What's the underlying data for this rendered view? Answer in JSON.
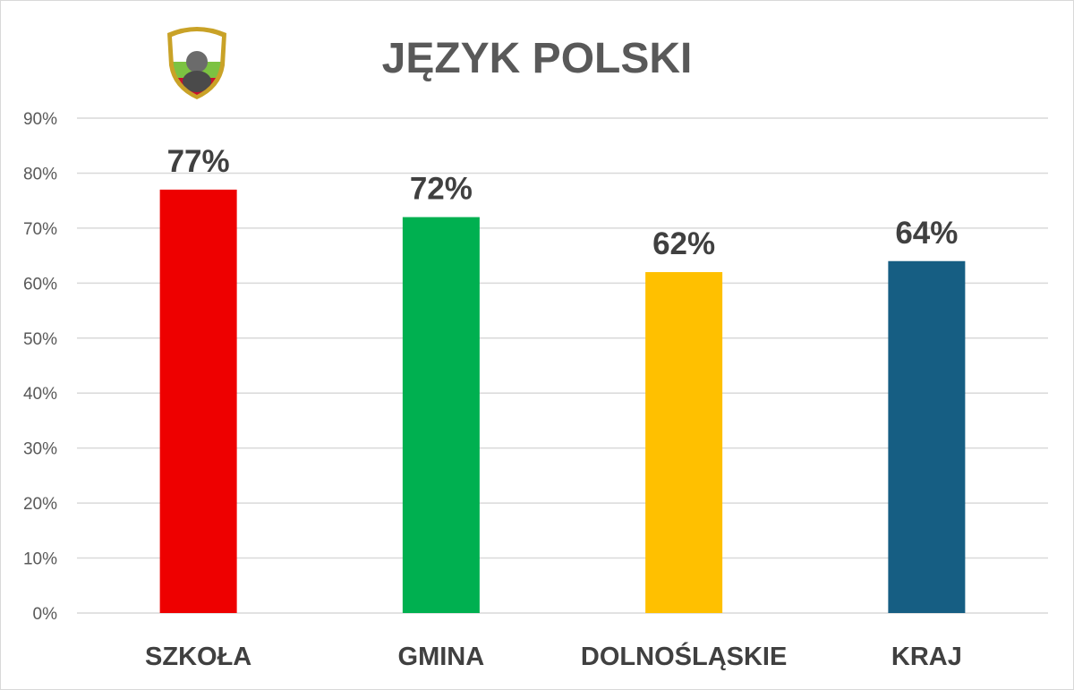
{
  "chart_data": {
    "type": "bar",
    "title": "JĘZYK POLSKI",
    "categories": [
      "SZKOŁA",
      "GMINA",
      "DOLNOŚLĄSKIE",
      "KRAJ"
    ],
    "values": [
      77,
      72,
      62,
      64
    ],
    "data_labels": [
      "77%",
      "72%",
      "62%",
      "64%"
    ],
    "colors": [
      "#ee0000",
      "#00b050",
      "#ffc000",
      "#165e83"
    ],
    "ylim": [
      0,
      90
    ],
    "yticks": [
      0,
      10,
      20,
      30,
      40,
      50,
      60,
      70,
      80,
      90
    ],
    "ytick_labels": [
      "0%",
      "10%",
      "20%",
      "30%",
      "40%",
      "50%",
      "60%",
      "70%",
      "80%",
      "90%"
    ],
    "grid": true,
    "legend": "none",
    "xlabel": "",
    "ylabel": ""
  },
  "colors": {
    "title": "#595959",
    "tick": "#595959",
    "category": "#404040",
    "data_label": "#404040",
    "grid": "#d9d9d9"
  },
  "logo": {
    "shield_outer": "#c9a227",
    "stripe_top": "#ffffff",
    "stripe_mid": "#7cc242",
    "stripe_bottom": "#c8102e"
  }
}
